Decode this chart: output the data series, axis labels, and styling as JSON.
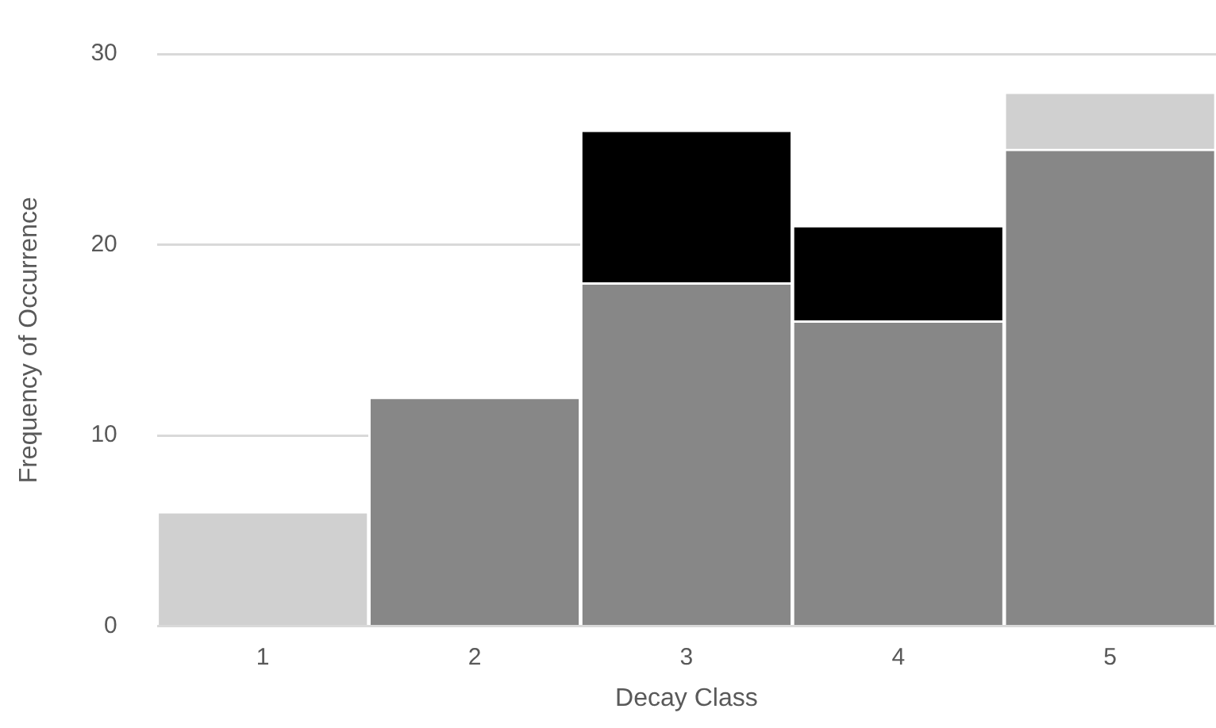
{
  "chart_data": {
    "type": "bar",
    "stacked": true,
    "xlabel": "Decay Class",
    "ylabel": "Frequency of Occurrence",
    "categories": [
      "1",
      "2",
      "3",
      "4",
      "5"
    ],
    "series": [
      {
        "color": "#878787",
        "values": [
          0,
          12,
          18,
          16,
          25
        ]
      },
      {
        "color": "#000000",
        "values": [
          0,
          0,
          8,
          5,
          0
        ]
      },
      {
        "color": "#d0d0d0",
        "values": [
          6,
          0,
          0,
          0,
          3
        ]
      }
    ],
    "ylim": [
      0,
      30
    ],
    "yticks": [
      0,
      10,
      20,
      30
    ],
    "grid": "y",
    "legend": false
  }
}
